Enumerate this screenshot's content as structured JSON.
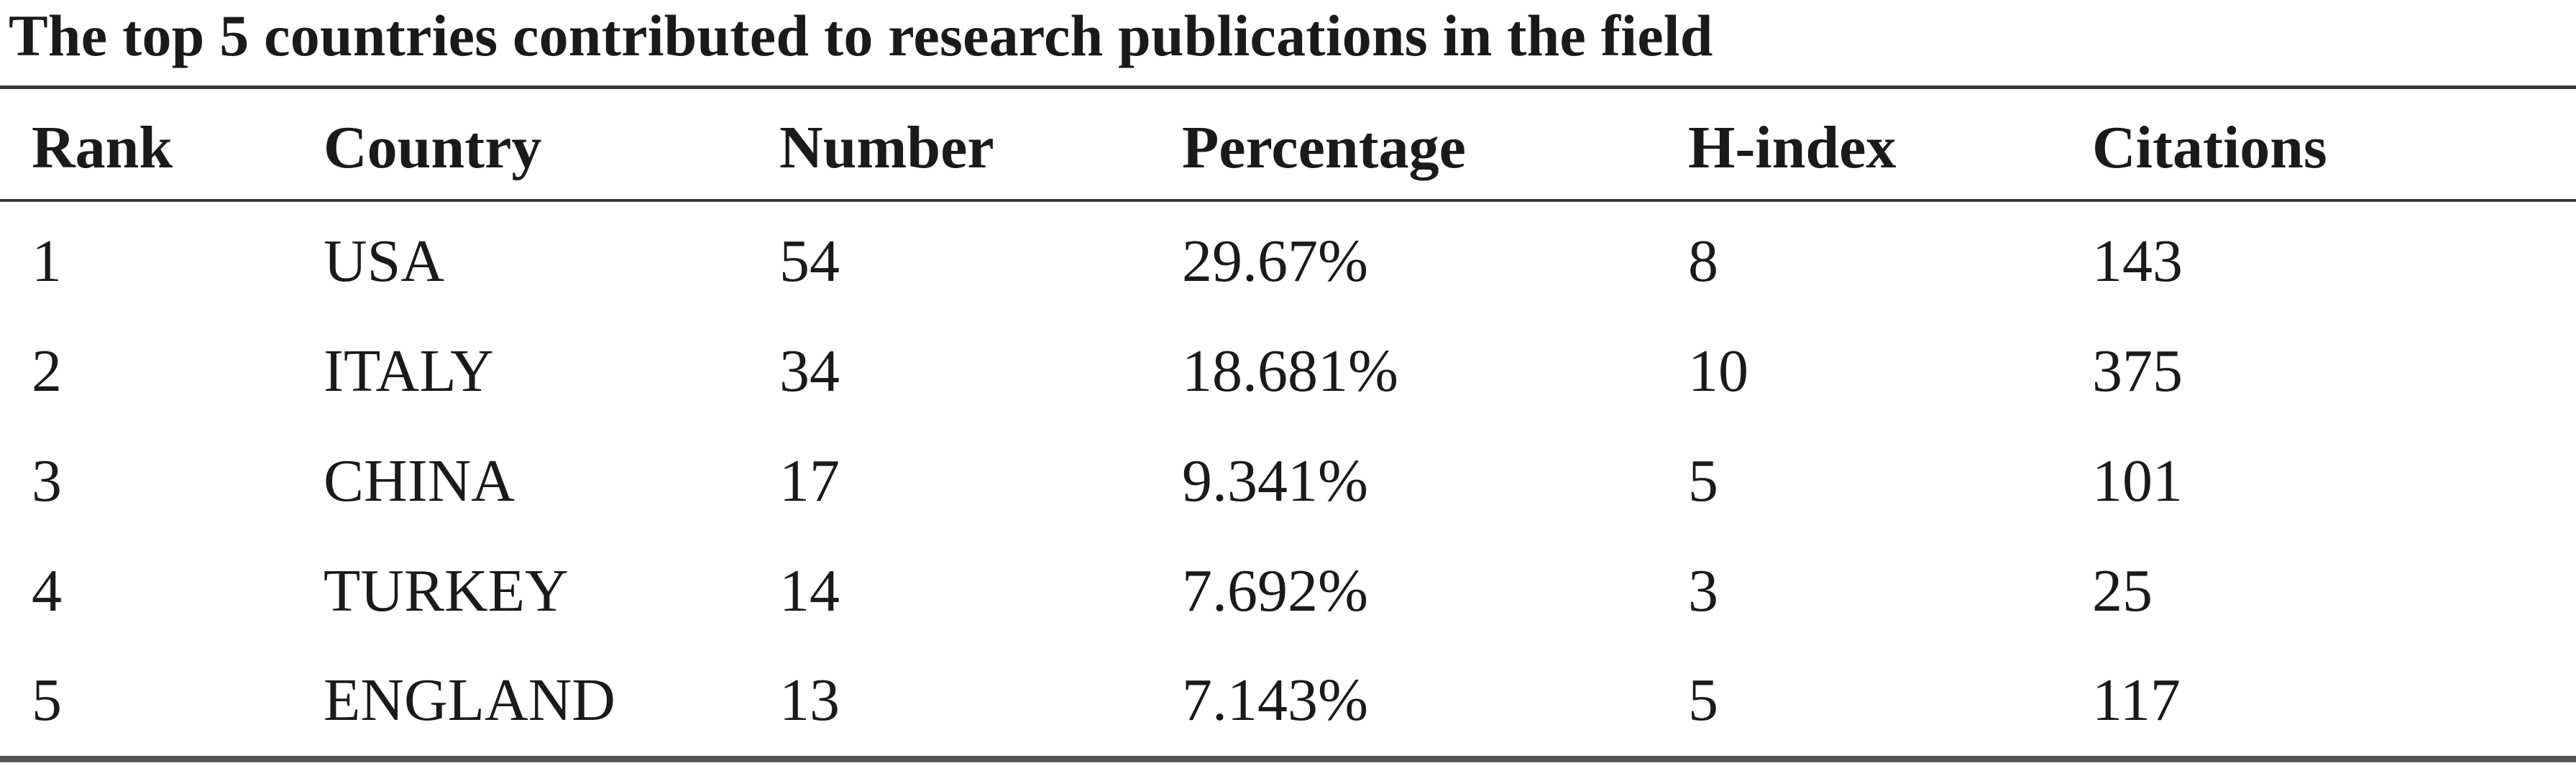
{
  "title": "The top 5 countries contributed to research publications in the field",
  "table": {
    "headers": [
      "Rank",
      "Country",
      "Number",
      "Percentage",
      "H-index",
      "Citations"
    ],
    "rows": [
      [
        "1",
        "USA",
        "54",
        "29.67%",
        "8",
        "143"
      ],
      [
        "2",
        "ITALY",
        "34",
        "18.681%",
        "10",
        "375"
      ],
      [
        "3",
        "CHINA",
        "17",
        "9.341%",
        "5",
        "101"
      ],
      [
        "4",
        "TURKEY",
        "14",
        "7.692%",
        "3",
        "25"
      ],
      [
        "5",
        "ENGLAND",
        "13",
        "7.143%",
        "5",
        "117"
      ]
    ]
  }
}
